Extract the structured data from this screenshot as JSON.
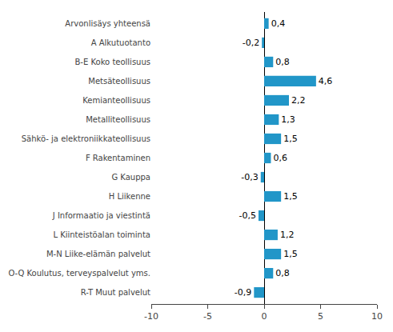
{
  "chart_data": {
    "type": "bar",
    "orientation": "horizontal",
    "categories": [
      "R-T Muut palvelut",
      "O-Q Koulutus, terveyspalvelut yms.",
      "M-N Liike-elämän palvelut",
      "L Kiinteistöalan toiminta",
      "J Informaatio ja viestintä",
      "H Liikenne",
      "G Kauppa",
      "F Rakentaminen",
      "Sähkö- ja elektroniikkateollisuus",
      "Metalliteollisuus",
      "Kemianteollisuus",
      "Metsäteollisuus",
      "B-E Koko teollisuus",
      "A Alkutuotanto",
      "Arvonlisäys yhteensä"
    ],
    "values": [
      -0.9,
      0.8,
      1.5,
      1.2,
      -0.5,
      1.5,
      -0.3,
      0.6,
      1.5,
      1.3,
      2.2,
      4.6,
      0.8,
      -0.2,
      0.4
    ],
    "value_labels": [
      "-0,9",
      "0,8",
      "1,5",
      "1,2",
      "-0,5",
      "1,5",
      "-0,3",
      "0,6",
      "1,5",
      "1,3",
      "2,2",
      "4,6",
      "0,8",
      "-0,2",
      "0,4"
    ],
    "data_labels": true,
    "color": "#2196c8",
    "xlim": [
      -10,
      10
    ],
    "xticks": [
      -10,
      -5,
      0,
      5,
      10
    ],
    "grid": false
  }
}
